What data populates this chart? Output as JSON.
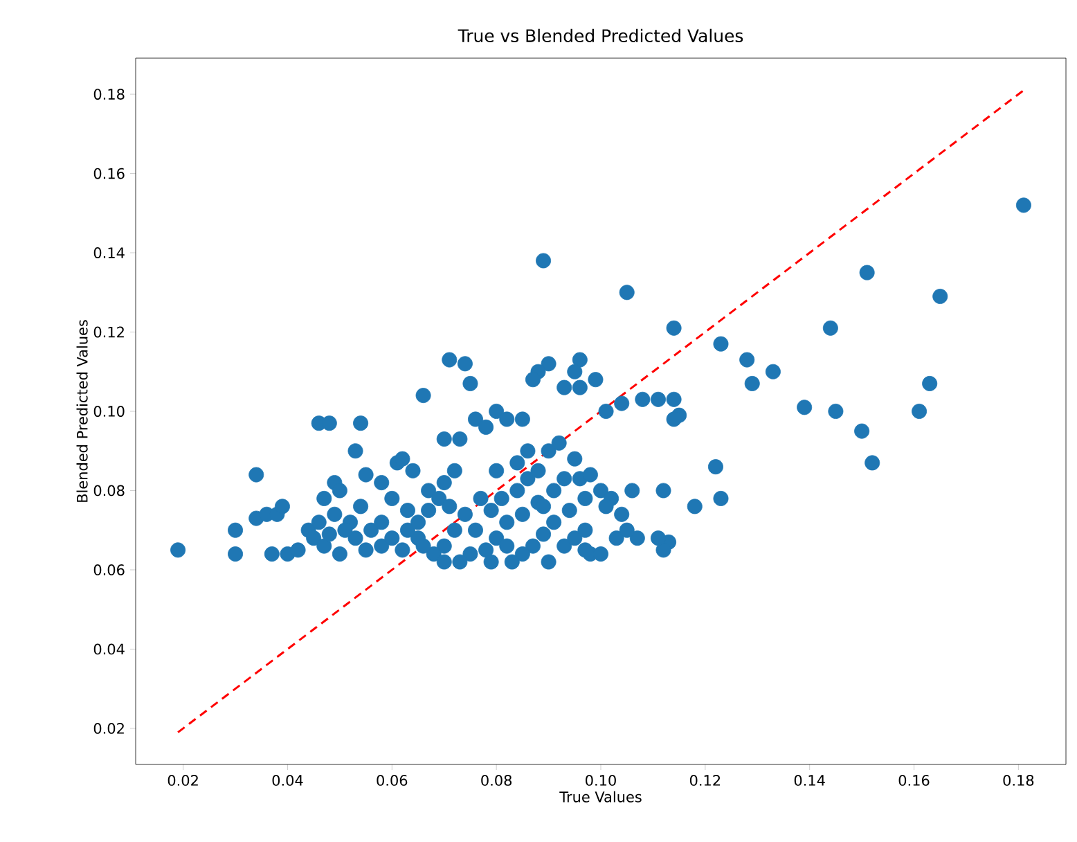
{
  "chart_data": {
    "type": "scatter",
    "title": "True vs Blended Predicted Values",
    "xlabel": "True Values",
    "ylabel": "Blended Predicted Values",
    "xlim": [
      0.0109,
      0.1891
    ],
    "ylim": [
      0.0109,
      0.1891
    ],
    "xticks": [
      {
        "value": 0.02,
        "label": "0.02"
      },
      {
        "value": 0.04,
        "label": "0.04"
      },
      {
        "value": 0.06,
        "label": "0.06"
      },
      {
        "value": 0.08,
        "label": "0.08"
      },
      {
        "value": 0.1,
        "label": "0.10"
      },
      {
        "value": 0.12,
        "label": "0.12"
      },
      {
        "value": 0.14,
        "label": "0.14"
      },
      {
        "value": 0.16,
        "label": "0.16"
      },
      {
        "value": 0.18,
        "label": "0.18"
      }
    ],
    "yticks": [
      {
        "value": 0.02,
        "label": "0.02"
      },
      {
        "value": 0.04,
        "label": "0.04"
      },
      {
        "value": 0.06,
        "label": "0.06"
      },
      {
        "value": 0.08,
        "label": "0.08"
      },
      {
        "value": 0.1,
        "label": "0.10"
      },
      {
        "value": 0.12,
        "label": "0.12"
      },
      {
        "value": 0.14,
        "label": "0.14"
      },
      {
        "value": 0.16,
        "label": "0.16"
      },
      {
        "value": 0.18,
        "label": "0.18"
      }
    ],
    "grid": false,
    "series": [
      {
        "color": "#1f77b4",
        "marker": "circle",
        "x": [
          0.181,
          0.151,
          0.165,
          0.144,
          0.114,
          0.105,
          0.089,
          0.123,
          0.128,
          0.133,
          0.129,
          0.163,
          0.139,
          0.145,
          0.161,
          0.15,
          0.152,
          0.122,
          0.123,
          0.118,
          0.112,
          0.113,
          0.112,
          0.111,
          0.107,
          0.103,
          0.098,
          0.097,
          0.114,
          0.115,
          0.114,
          0.111,
          0.108,
          0.104,
          0.101,
          0.096,
          0.095,
          0.09,
          0.088,
          0.087,
          0.093,
          0.099,
          0.096,
          0.019,
          0.03,
          0.03,
          0.034,
          0.034,
          0.036,
          0.037,
          0.038,
          0.039,
          0.04,
          0.042,
          0.046,
          0.048,
          0.054,
          0.053,
          0.049,
          0.05,
          0.055,
          0.058,
          0.044,
          0.045,
          0.047,
          0.05,
          0.052,
          0.054,
          0.056,
          0.058,
          0.06,
          0.061,
          0.062,
          0.064,
          0.066,
          0.07,
          0.071,
          0.074,
          0.075,
          0.073,
          0.076,
          0.078,
          0.08,
          0.082,
          0.085,
          0.086,
          0.084,
          0.08,
          0.077,
          0.074,
          0.072,
          0.07,
          0.068,
          0.065,
          0.063,
          0.067,
          0.07,
          0.072,
          0.078,
          0.08,
          0.082,
          0.084,
          0.086,
          0.088,
          0.09,
          0.092,
          0.095,
          0.093,
          0.096,
          0.098,
          0.1,
          0.102,
          0.104,
          0.105,
          0.101,
          0.097,
          0.094,
          0.091,
          0.089,
          0.087,
          0.085,
          0.083,
          0.09,
          0.093,
          0.095,
          0.088,
          0.085,
          0.082,
          0.079,
          0.075,
          0.073,
          0.07,
          0.066,
          0.062,
          0.06,
          0.058,
          0.055,
          0.053,
          0.051,
          0.049,
          0.047,
          0.046,
          0.048,
          0.063,
          0.065,
          0.067,
          0.069,
          0.071,
          0.076,
          0.079,
          0.081,
          0.106,
          0.1,
          0.097,
          0.091,
          0.089
        ],
        "values": [
          0.152,
          0.135,
          0.129,
          0.121,
          0.121,
          0.13,
          0.138,
          0.117,
          0.113,
          0.11,
          0.107,
          0.107,
          0.101,
          0.1,
          0.1,
          0.095,
          0.087,
          0.086,
          0.078,
          0.076,
          0.08,
          0.067,
          0.065,
          0.068,
          0.068,
          0.068,
          0.064,
          0.065,
          0.103,
          0.099,
          0.098,
          0.103,
          0.103,
          0.102,
          0.1,
          0.113,
          0.11,
          0.112,
          0.11,
          0.108,
          0.106,
          0.108,
          0.106,
          0.065,
          0.07,
          0.064,
          0.084,
          0.073,
          0.074,
          0.064,
          0.074,
          0.076,
          0.064,
          0.065,
          0.097,
          0.097,
          0.097,
          0.09,
          0.082,
          0.08,
          0.084,
          0.082,
          0.07,
          0.068,
          0.066,
          0.064,
          0.072,
          0.076,
          0.07,
          0.066,
          0.078,
          0.087,
          0.088,
          0.085,
          0.104,
          0.093,
          0.113,
          0.112,
          0.107,
          0.093,
          0.098,
          0.096,
          0.1,
          0.098,
          0.098,
          0.09,
          0.087,
          0.085,
          0.078,
          0.074,
          0.07,
          0.066,
          0.064,
          0.068,
          0.075,
          0.08,
          0.082,
          0.085,
          0.065,
          0.068,
          0.072,
          0.08,
          0.083,
          0.085,
          0.09,
          0.092,
          0.088,
          0.083,
          0.083,
          0.084,
          0.08,
          0.078,
          0.074,
          0.07,
          0.076,
          0.078,
          0.075,
          0.072,
          0.069,
          0.066,
          0.064,
          0.062,
          0.062,
          0.066,
          0.068,
          0.077,
          0.074,
          0.066,
          0.062,
          0.064,
          0.062,
          0.062,
          0.066,
          0.065,
          0.068,
          0.072,
          0.065,
          0.068,
          0.07,
          0.074,
          0.078,
          0.072,
          0.069,
          0.07,
          0.072,
          0.075,
          0.078,
          0.076,
          0.07,
          0.075,
          0.078,
          0.08,
          0.064,
          0.07,
          0.08,
          0.076
        ]
      },
      {
        "type": "line",
        "color": "#ff0000",
        "line_style": "dashed",
        "marker": "none",
        "x": [
          0.019,
          0.181
        ],
        "values": [
          0.019,
          0.181
        ]
      }
    ]
  }
}
